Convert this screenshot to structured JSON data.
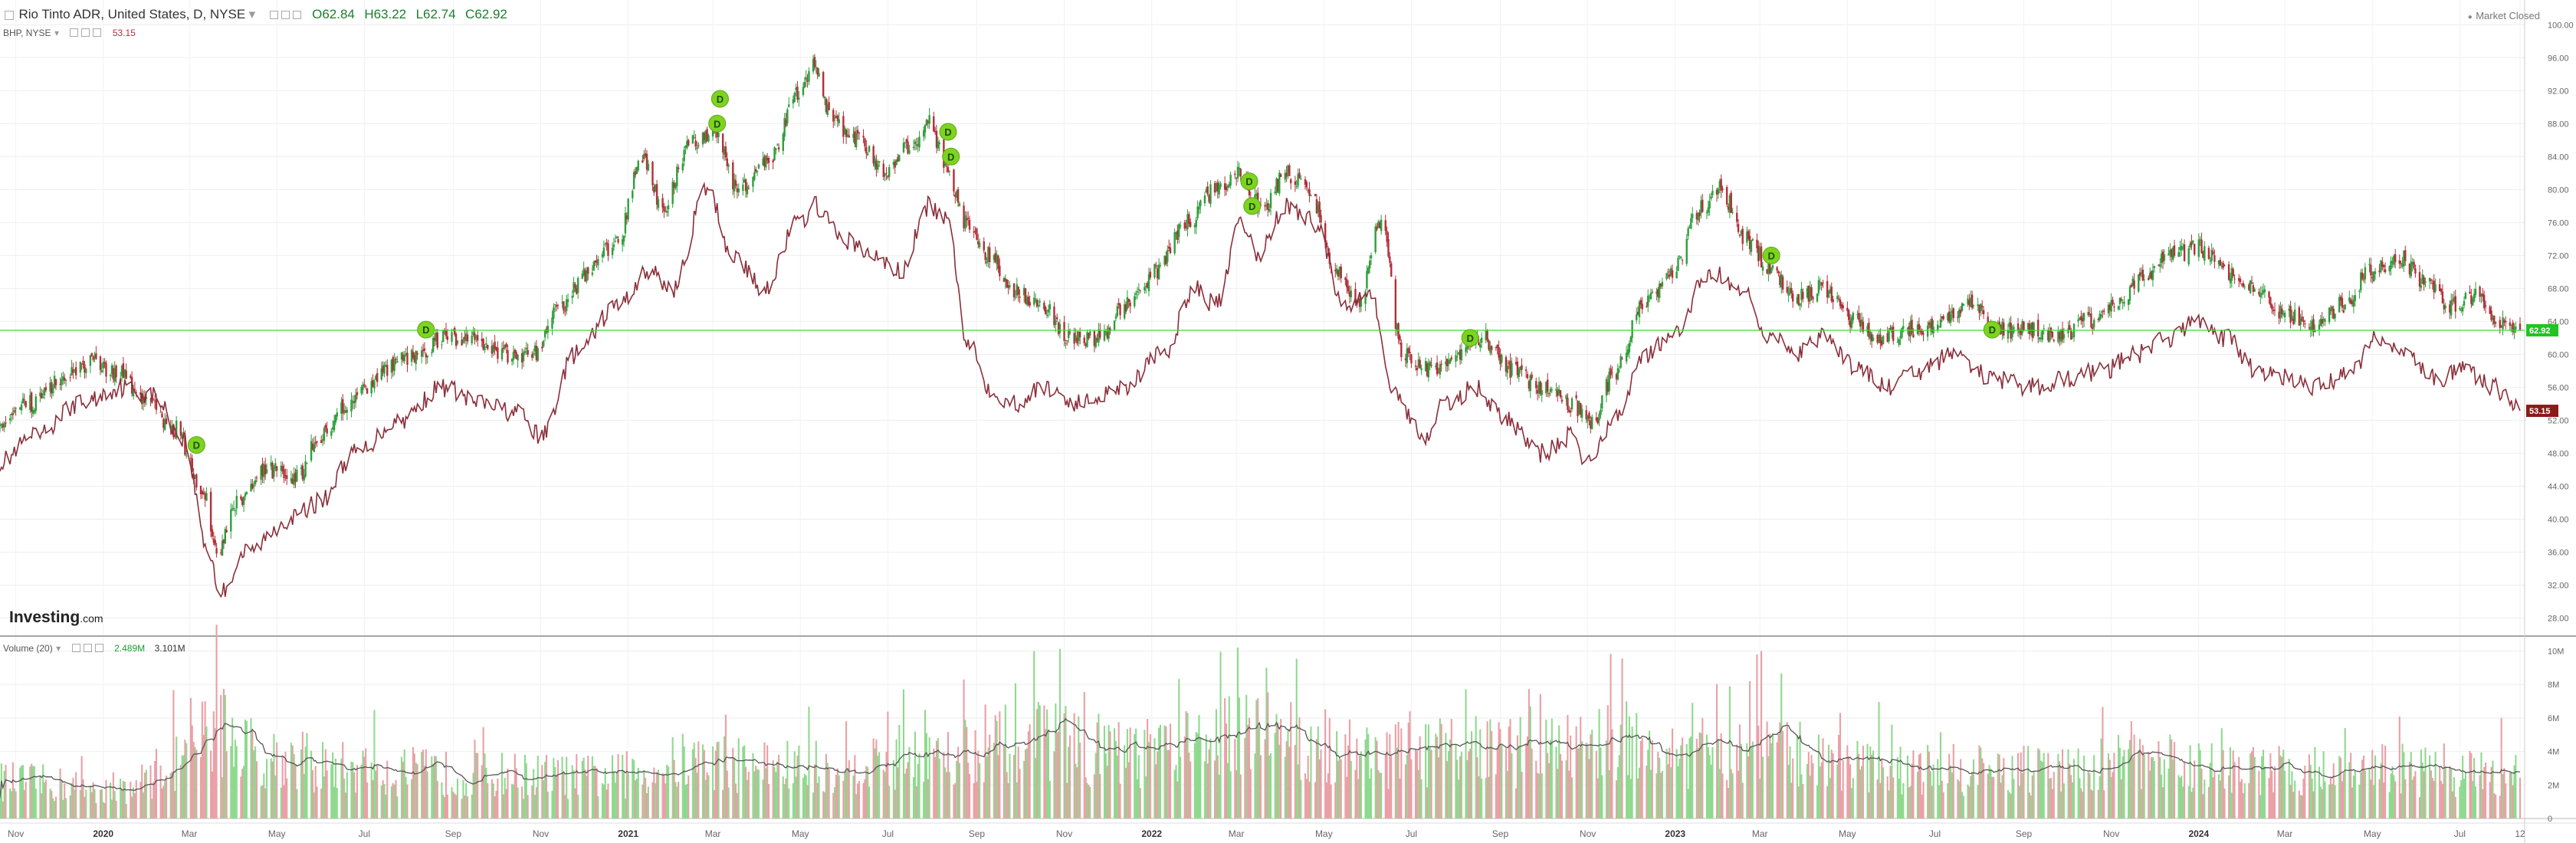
{
  "header": {
    "symbol_line": "Rio Tinto ADR, United States, D, NYSE",
    "ohlc": {
      "open": "O62.84",
      "high": "H63.22",
      "low": "L62.74",
      "close": "C62.92"
    },
    "compare_symbol": "BHP, NYSE",
    "compare_value": "53.15",
    "market_status": "Market Closed",
    "volume_label": "Volume (20)",
    "volume_values": [
      "2.489M",
      "3.101M"
    ],
    "logo": "Investing",
    "logo_suffix": ".com"
  },
  "colors": {
    "up": "#2e9e3c",
    "down": "#b0303a",
    "compare_line": "#8b2f3a",
    "price_line": "#3adb3a",
    "dividend": "#7ed321",
    "vol_up": "#8fd98f",
    "vol_down": "#e9a0a6",
    "vol_ma": "#555555"
  },
  "chart_data": [
    {
      "type": "candlestick",
      "title": "Rio Tinto ADR, United States, D, NYSE",
      "x_ticks": [
        "Nov",
        "2020",
        "Mar",
        "May",
        "Jul",
        "Sep",
        "Nov",
        "2021",
        "Mar",
        "May",
        "Jul",
        "Sep",
        "Nov",
        "2022",
        "Mar",
        "May",
        "Jul",
        "Sep",
        "Nov",
        "2023",
        "Mar",
        "May",
        "Jul",
        "Sep",
        "Nov",
        "2024",
        "Mar",
        "May",
        "Jul",
        "12"
      ],
      "y_ticks": [
        28,
        32,
        36,
        40,
        44,
        48,
        52,
        56,
        60,
        64,
        68,
        72,
        76,
        80,
        84,
        88,
        92,
        96,
        100
      ],
      "y_tick_labels": [
        "28.00",
        "32.00",
        "36.00",
        "40.00",
        "44.00",
        "48.00",
        "52.00",
        "56.00",
        "60.00",
        "64.00",
        "68.00",
        "72.00",
        "76.00",
        "80.00",
        "84.00",
        "88.00",
        "92.00",
        "96.00",
        "100.00"
      ],
      "ylim": [
        26,
        103
      ],
      "last_price": 62.92,
      "last_price_label": "62.92",
      "series": [
        {
          "name": "RIO",
          "style": "candles",
          "anchors": [
            [
              "2019-10-21",
              51
            ],
            [
              "2019-11-10",
              54
            ],
            [
              "2019-12-10",
              58
            ],
            [
              "2019-12-25",
              59
            ],
            [
              "2020-01-10",
              58
            ],
            [
              "2020-02-01",
              54
            ],
            [
              "2020-02-20",
              51
            ],
            [
              "2020-03-10",
              44
            ],
            [
              "2020-03-20",
              36
            ],
            [
              "2020-04-05",
              42
            ],
            [
              "2020-04-25",
              46
            ],
            [
              "2020-05-15",
              45
            ],
            [
              "2020-05-30",
              50
            ],
            [
              "2020-06-20",
              54
            ],
            [
              "2020-07-15",
              58
            ],
            [
              "2020-08-05",
              60
            ],
            [
              "2020-08-25",
              62
            ],
            [
              "2020-09-15",
              62
            ],
            [
              "2020-10-10",
              60
            ],
            [
              "2020-10-28",
              60
            ],
            [
              "2020-11-15",
              66
            ],
            [
              "2020-12-05",
              70
            ],
            [
              "2020-12-25",
              74
            ],
            [
              "2021-01-10",
              84
            ],
            [
              "2021-01-25",
              78
            ],
            [
              "2021-02-15",
              86
            ],
            [
              "2021-03-01",
              87
            ],
            [
              "2021-03-20",
              80
            ],
            [
              "2021-04-10",
              84
            ],
            [
              "2021-04-30",
              92
            ],
            [
              "2021-05-10",
              95
            ],
            [
              "2021-05-25",
              88
            ],
            [
              "2021-06-10",
              86
            ],
            [
              "2021-06-30",
              82
            ],
            [
              "2021-07-15",
              85
            ],
            [
              "2021-07-30",
              88
            ],
            [
              "2021-08-12",
              82
            ],
            [
              "2021-08-25",
              76
            ],
            [
              "2021-09-10",
              72
            ],
            [
              "2021-09-25",
              68
            ],
            [
              "2021-10-15",
              66
            ],
            [
              "2021-11-05",
              62
            ],
            [
              "2021-11-25",
              62
            ],
            [
              "2021-12-15",
              66
            ],
            [
              "2022-01-05",
              70
            ],
            [
              "2022-01-25",
              76
            ],
            [
              "2022-02-15",
              80
            ],
            [
              "2022-03-01",
              82
            ],
            [
              "2022-03-20",
              78
            ],
            [
              "2022-04-05",
              82
            ],
            [
              "2022-04-20",
              80
            ],
            [
              "2022-05-10",
              70
            ],
            [
              "2022-05-25",
              66
            ],
            [
              "2022-06-10",
              76
            ],
            [
              "2022-06-25",
              60
            ],
            [
              "2022-07-15",
              58
            ],
            [
              "2022-08-01",
              60
            ],
            [
              "2022-08-20",
              62
            ],
            [
              "2022-09-10",
              58
            ],
            [
              "2022-09-30",
              56
            ],
            [
              "2022-10-20",
              54
            ],
            [
              "2022-11-05",
              52
            ],
            [
              "2022-11-20",
              58
            ],
            [
              "2022-12-10",
              66
            ],
            [
              "2022-12-30",
              70
            ],
            [
              "2023-01-20",
              78
            ],
            [
              "2023-02-01",
              80
            ],
            [
              "2023-02-20",
              74
            ],
            [
              "2023-03-10",
              70
            ],
            [
              "2023-03-25",
              67
            ],
            [
              "2023-04-15",
              68
            ],
            [
              "2023-05-05",
              64
            ],
            [
              "2023-05-25",
              62
            ],
            [
              "2023-06-15",
              63
            ],
            [
              "2023-07-05",
              64
            ],
            [
              "2023-07-25",
              66
            ],
            [
              "2023-08-15",
              63
            ],
            [
              "2023-09-05",
              63
            ],
            [
              "2023-09-25",
              62
            ],
            [
              "2023-10-15",
              64
            ],
            [
              "2023-11-05",
              66
            ],
            [
              "2023-11-25",
              70
            ],
            [
              "2023-12-15",
              72
            ],
            [
              "2024-01-01",
              73
            ],
            [
              "2024-01-20",
              70
            ],
            [
              "2024-02-10",
              68
            ],
            [
              "2024-03-01",
              65
            ],
            [
              "2024-03-20",
              63
            ],
            [
              "2024-04-10",
              66
            ],
            [
              "2024-04-30",
              70
            ],
            [
              "2024-05-20",
              72
            ],
            [
              "2024-06-05",
              69
            ],
            [
              "2024-06-25",
              66
            ],
            [
              "2024-07-10",
              67
            ],
            [
              "2024-07-31",
              64
            ],
            [
              "2024-08-12",
              62.92
            ]
          ]
        },
        {
          "name": "BHP",
          "style": "line",
          "last_value_label": "53.15",
          "anchors": [
            [
              "2019-10-21",
              47
            ],
            [
              "2019-11-15",
              50
            ],
            [
              "2019-12-15",
              54
            ],
            [
              "2020-01-15",
              56
            ],
            [
              "2020-02-05",
              55
            ],
            [
              "2020-02-25",
              50
            ],
            [
              "2020-03-15",
              36
            ],
            [
              "2020-03-22",
              31
            ],
            [
              "2020-04-10",
              36
            ],
            [
              "2020-05-10",
              40
            ],
            [
              "2020-05-30",
              42
            ],
            [
              "2020-06-25",
              48
            ],
            [
              "2020-07-25",
              52
            ],
            [
              "2020-08-25",
              56
            ],
            [
              "2020-09-20",
              54
            ],
            [
              "2020-10-15",
              53
            ],
            [
              "2020-11-01",
              50
            ],
            [
              "2020-11-25",
              60
            ],
            [
              "2020-12-25",
              66
            ],
            [
              "2021-01-15",
              70
            ],
            [
              "2021-02-01",
              68
            ],
            [
              "2021-02-25",
              80
            ],
            [
              "2021-03-15",
              72
            ],
            [
              "2021-04-05",
              68
            ],
            [
              "2021-04-30",
              76
            ],
            [
              "2021-05-12",
              78
            ],
            [
              "2021-05-30",
              74
            ],
            [
              "2021-06-20",
              72
            ],
            [
              "2021-07-10",
              70
            ],
            [
              "2021-07-30",
              78
            ],
            [
              "2021-08-12",
              76
            ],
            [
              "2021-08-25",
              62
            ],
            [
              "2021-09-10",
              56
            ],
            [
              "2021-09-25",
              54
            ],
            [
              "2021-10-20",
              56
            ],
            [
              "2021-11-10",
              54
            ],
            [
              "2021-12-10",
              56
            ],
            [
              "2022-01-10",
              60
            ],
            [
              "2022-01-30",
              68
            ],
            [
              "2022-02-15",
              66
            ],
            [
              "2022-03-05",
              76
            ],
            [
              "2022-03-15",
              72
            ],
            [
              "2022-04-05",
              78
            ],
            [
              "2022-04-25",
              76
            ],
            [
              "2022-05-15",
              66
            ],
            [
              "2022-06-01",
              68
            ],
            [
              "2022-06-20",
              55
            ],
            [
              "2022-07-10",
              50
            ],
            [
              "2022-07-25",
              54
            ],
            [
              "2022-08-15",
              56
            ],
            [
              "2022-09-05",
              52
            ],
            [
              "2022-09-30",
              48
            ],
            [
              "2022-10-20",
              50
            ],
            [
              "2022-11-01",
              47
            ],
            [
              "2022-11-20",
              52
            ],
            [
              "2022-12-10",
              60
            ],
            [
              "2022-12-30",
              62
            ],
            [
              "2023-01-25",
              70
            ],
            [
              "2023-02-15",
              68
            ],
            [
              "2023-03-10",
              62
            ],
            [
              "2023-03-25",
              60
            ],
            [
              "2023-04-15",
              62
            ],
            [
              "2023-05-10",
              58
            ],
            [
              "2023-05-30",
              56
            ],
            [
              "2023-06-20",
              58
            ],
            [
              "2023-07-15",
              60
            ],
            [
              "2023-08-10",
              57
            ],
            [
              "2023-09-05",
              56
            ],
            [
              "2023-09-30",
              57
            ],
            [
              "2023-10-25",
              58
            ],
            [
              "2023-11-20",
              60
            ],
            [
              "2023-12-10",
              62
            ],
            [
              "2024-01-01",
              64
            ],
            [
              "2024-01-20",
              62
            ],
            [
              "2024-02-10",
              58
            ],
            [
              "2024-03-05",
              57
            ],
            [
              "2024-03-25",
              56
            ],
            [
              "2024-04-15",
              58
            ],
            [
              "2024-05-05",
              62
            ],
            [
              "2024-05-25",
              60
            ],
            [
              "2024-06-15",
              57
            ],
            [
              "2024-07-05",
              58
            ],
            [
              "2024-07-25",
              56
            ],
            [
              "2024-08-12",
              53.15
            ]
          ]
        }
      ],
      "dividends": [
        {
          "date": "2020-03-06",
          "price": 49,
          "label": "D"
        },
        {
          "date": "2020-08-13",
          "price": 63,
          "label": "D"
        },
        {
          "date": "2021-03-04",
          "price": 88,
          "label": "D"
        },
        {
          "date": "2021-03-06",
          "price": 91,
          "label": "D"
        },
        {
          "date": "2021-08-12",
          "price": 87,
          "label": "D"
        },
        {
          "date": "2021-08-14",
          "price": 84,
          "label": "D"
        },
        {
          "date": "2022-03-10",
          "price": 81,
          "label": "D"
        },
        {
          "date": "2022-03-12",
          "price": 78,
          "label": "D"
        },
        {
          "date": "2022-08-11",
          "price": 62,
          "label": "D"
        },
        {
          "date": "2023-03-09",
          "price": 72,
          "label": "D"
        },
        {
          "date": "2023-08-10",
          "price": 63,
          "label": "D"
        }
      ]
    },
    {
      "type": "bar",
      "title": "Volume (20)",
      "y_ticks": [
        0,
        2,
        4,
        6,
        8,
        10
      ],
      "y_tick_labels": [
        "0",
        "2M",
        "4M",
        "6M",
        "8M",
        "10M"
      ],
      "ylim": [
        0,
        10.8
      ],
      "unit": "M",
      "volume_anchors": [
        [
          "2019-10-21",
          2.2
        ],
        [
          "2020-01-15",
          1.8
        ],
        [
          "2020-02-25",
          3.5
        ],
        [
          "2020-03-20",
          5.5
        ],
        [
          "2020-04-20",
          3.8
        ],
        [
          "2020-06-15",
          3.0
        ],
        [
          "2020-09-15",
          2.6
        ],
        [
          "2020-12-15",
          2.5
        ],
        [
          "2021-02-20",
          3.4
        ],
        [
          "2021-05-10",
          3.0
        ],
        [
          "2021-08-25",
          4.2
        ],
        [
          "2021-10-20",
          4.6
        ],
        [
          "2021-12-20",
          3.8
        ],
        [
          "2022-02-15",
          4.5
        ],
        [
          "2022-03-10",
          5.9
        ],
        [
          "2022-04-15",
          4.4
        ],
        [
          "2022-06-20",
          3.8
        ],
        [
          "2022-09-15",
          4.0
        ],
        [
          "2022-11-20",
          4.8
        ],
        [
          "2023-01-15",
          3.6
        ],
        [
          "2023-03-20",
          3.8
        ],
        [
          "2023-06-15",
          2.9
        ],
        [
          "2023-09-15",
          2.8
        ],
        [
          "2023-11-20",
          3.4
        ],
        [
          "2024-02-15",
          2.8
        ],
        [
          "2024-05-15",
          2.9
        ],
        [
          "2024-07-20",
          2.6
        ],
        [
          "2024-08-12",
          3.1
        ]
      ],
      "spikes": [
        [
          "2020-03-02",
          7.2
        ],
        [
          "2020-03-12",
          7.0
        ],
        [
          "2020-03-18",
          6.4
        ],
        [
          "2021-03-10",
          6.2
        ],
        [
          "2021-08-23",
          8.3
        ],
        [
          "2021-09-07",
          6.8
        ],
        [
          "2022-03-02",
          10.2
        ],
        [
          "2022-03-22",
          9.0
        ],
        [
          "2022-06-30",
          6.4
        ],
        [
          "2022-09-22",
          6.7
        ],
        [
          "2023-01-20",
          6.0
        ],
        [
          "2023-02-27",
          9.8
        ],
        [
          "2023-03-02",
          10.0
        ],
        [
          "2023-06-01",
          5.6
        ],
        [
          "2024-07-30",
          6.0
        ]
      ]
    }
  ]
}
